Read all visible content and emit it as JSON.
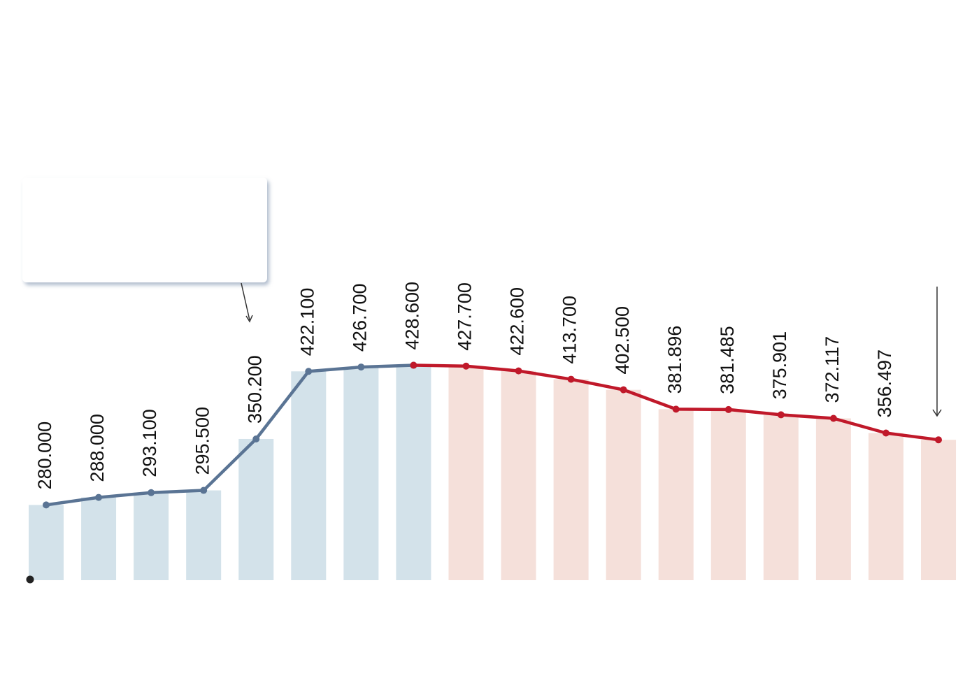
{
  "chart_data": {
    "type": "bar-line",
    "series": [
      {
        "color": "#5a7494",
        "bar_color": "#d3e2ea",
        "values": [
          280,
          288,
          293.1,
          295.5,
          350.2,
          422.1,
          426.7,
          428.6,
          null,
          null,
          null,
          null,
          null,
          null,
          null,
          null,
          null,
          null
        ],
        "value_labels": [
          "280.000",
          "288.000",
          "293.100",
          "295.500",
          "350.200",
          "422.100",
          "426.700",
          "428.600",
          null,
          null,
          null,
          null,
          null,
          null,
          null,
          null,
          null,
          null
        ]
      },
      {
        "color": "#c0192a",
        "bar_color": "#f5e0da",
        "values": [
          null,
          null,
          null,
          null,
          null,
          null,
          null,
          428.6,
          427.7,
          422.6,
          413.7,
          402.5,
          381.896,
          381.485,
          375.901,
          372.117,
          356.497,
          349.3
        ],
        "value_labels": [
          null,
          null,
          null,
          null,
          null,
          null,
          null,
          null,
          "427.700",
          "422.600",
          "413.700",
          "402.500",
          "381.896",
          "381.485",
          "375.901",
          "372.117",
          "356.497",
          null
        ]
      }
    ],
    "ylim": [
      200,
      600
    ]
  }
}
